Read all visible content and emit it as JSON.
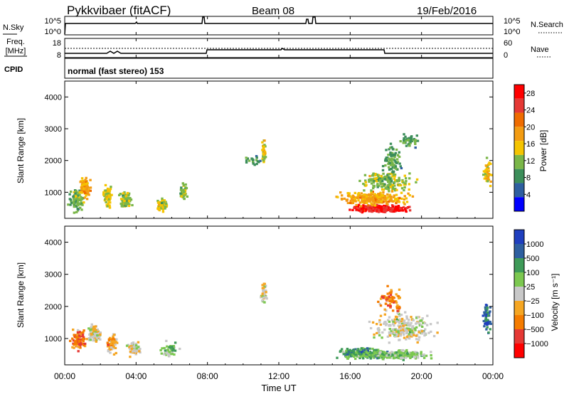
{
  "header": {
    "station": "Pykkvibaer (fitACF)",
    "beam": "Beam 08",
    "date": "19/Feb/2016"
  },
  "nsky_panel": {
    "left_label": "N.Sky",
    "right_label": "N.Search",
    "left_ticks": [
      "10^5",
      "10^0"
    ],
    "right_ticks": [
      "10^5",
      "10^0"
    ]
  },
  "freq_panel": {
    "left_label_line1": "Freq.",
    "left_label_line2": "[MHz]",
    "right_label": "Nave",
    "left_ticks": [
      "18",
      "8"
    ],
    "right_ticks": [
      "60",
      "0"
    ]
  },
  "cpid_panel": {
    "label": "CPID",
    "program": "normal (fast stereo) 153"
  },
  "x_axis": {
    "title": "Time UT",
    "ticks": [
      "00:00",
      "04:00",
      "08:00",
      "12:00",
      "16:00",
      "20:00",
      "00:00"
    ]
  },
  "colors": {
    "power": [
      "#0000ff",
      "#2e5fa0",
      "#3c8e5a",
      "#7ab648",
      "#f5c400",
      "#f39c12",
      "#ef6c00",
      "#e53935",
      "#ff0000"
    ],
    "velocity": [
      "#ff0000",
      "#e53935",
      "#f57c00",
      "#f5a623",
      "#c8c8c8",
      "#7cc850",
      "#3e9a58",
      "#2e5fa0",
      "#1f3fbf"
    ]
  },
  "chart_data": [
    {
      "type": "heatmap",
      "name": "power",
      "ylabel": "Slant Range [km]",
      "ylim": [
        180,
        4500
      ],
      "yticks": [
        1000,
        2000,
        3000,
        4000
      ],
      "xlim_hours": [
        0,
        24
      ],
      "colorbar": {
        "label": "Power [dB]",
        "ticks": [
          "4",
          "8",
          "12",
          "16",
          "20",
          "24",
          "28"
        ],
        "range": [
          0,
          30
        ]
      },
      "blobs": [
        {
          "t": 0.6,
          "r": 700,
          "dt": 0.5,
          "dr": 450,
          "level": 10,
          "n": 90
        },
        {
          "t": 1.1,
          "r": 1100,
          "dt": 0.4,
          "dr": 400,
          "level": 18,
          "n": 90
        },
        {
          "t": 2.4,
          "r": 800,
          "dt": 0.35,
          "dr": 450,
          "level": 14,
          "n": 70
        },
        {
          "t": 3.3,
          "r": 700,
          "dt": 0.5,
          "dr": 350,
          "level": 12,
          "n": 70
        },
        {
          "t": 5.4,
          "r": 550,
          "dt": 0.4,
          "dr": 300,
          "level": 14,
          "n": 55
        },
        {
          "t": 6.6,
          "r": 950,
          "dt": 0.25,
          "dr": 350,
          "level": 12,
          "n": 40
        },
        {
          "t": 11.1,
          "r": 2300,
          "dt": 0.15,
          "dr": 450,
          "level": 14,
          "n": 40
        },
        {
          "t": 10.4,
          "r": 2000,
          "dt": 0.6,
          "dr": 250,
          "level": 8,
          "n": 20
        },
        {
          "t": 17.6,
          "r": 450,
          "dt": 2.0,
          "dr": 140,
          "level": 29,
          "n": 320
        },
        {
          "t": 17.3,
          "r": 750,
          "dt": 2.6,
          "dr": 280,
          "level": 18,
          "n": 240
        },
        {
          "t": 18.0,
          "r": 1300,
          "dt": 2.0,
          "dr": 450,
          "level": 12,
          "n": 170
        },
        {
          "t": 18.3,
          "r": 2000,
          "dt": 0.7,
          "dr": 700,
          "level": 9,
          "n": 80
        },
        {
          "t": 19.3,
          "r": 2600,
          "dt": 0.7,
          "dr": 300,
          "level": 8,
          "n": 40
        },
        {
          "t": 23.6,
          "r": 1600,
          "dt": 0.3,
          "dr": 500,
          "level": 16,
          "n": 50
        }
      ]
    },
    {
      "type": "heatmap",
      "name": "velocity",
      "ylabel": "Slant Range [km]",
      "ylim": [
        180,
        4500
      ],
      "yticks": [
        1000,
        2000,
        3000,
        4000
      ],
      "xlim_hours": [
        0,
        24
      ],
      "colorbar": {
        "label": "Velocity [m s⁻¹]",
        "ticks": [
          "1000",
          "500",
          "100",
          "25",
          "−25",
          "−100",
          "−500",
          "−1000"
        ]
      },
      "blobs": [
        {
          "t": 0.7,
          "r": 900,
          "dt": 0.5,
          "dr": 450,
          "level": 2,
          "n": 90
        },
        {
          "t": 1.6,
          "r": 1100,
          "dt": 0.5,
          "dr": 350,
          "level": 4,
          "n": 80
        },
        {
          "t": 2.6,
          "r": 800,
          "dt": 0.4,
          "dr": 400,
          "level": 3,
          "n": 70
        },
        {
          "t": 3.8,
          "r": 650,
          "dt": 0.6,
          "dr": 300,
          "level": 4,
          "n": 70
        },
        {
          "t": 5.8,
          "r": 600,
          "dt": 0.6,
          "dr": 300,
          "level": 5,
          "n": 50
        },
        {
          "t": 11.1,
          "r": 2400,
          "dt": 0.2,
          "dr": 500,
          "level": 4,
          "n": 40
        },
        {
          "t": 16.6,
          "r": 500,
          "dt": 1.6,
          "dr": 220,
          "level": 6,
          "n": 220
        },
        {
          "t": 18.6,
          "r": 450,
          "dt": 2.4,
          "dr": 180,
          "level": 5,
          "n": 220
        },
        {
          "t": 19.0,
          "r": 1300,
          "dt": 2.3,
          "dr": 650,
          "level": 4,
          "n": 230
        },
        {
          "t": 18.2,
          "r": 2200,
          "dt": 0.8,
          "dr": 600,
          "level": 2,
          "n": 70
        },
        {
          "t": 23.6,
          "r": 1600,
          "dt": 0.3,
          "dr": 550,
          "level": 7,
          "n": 50
        }
      ]
    }
  ]
}
